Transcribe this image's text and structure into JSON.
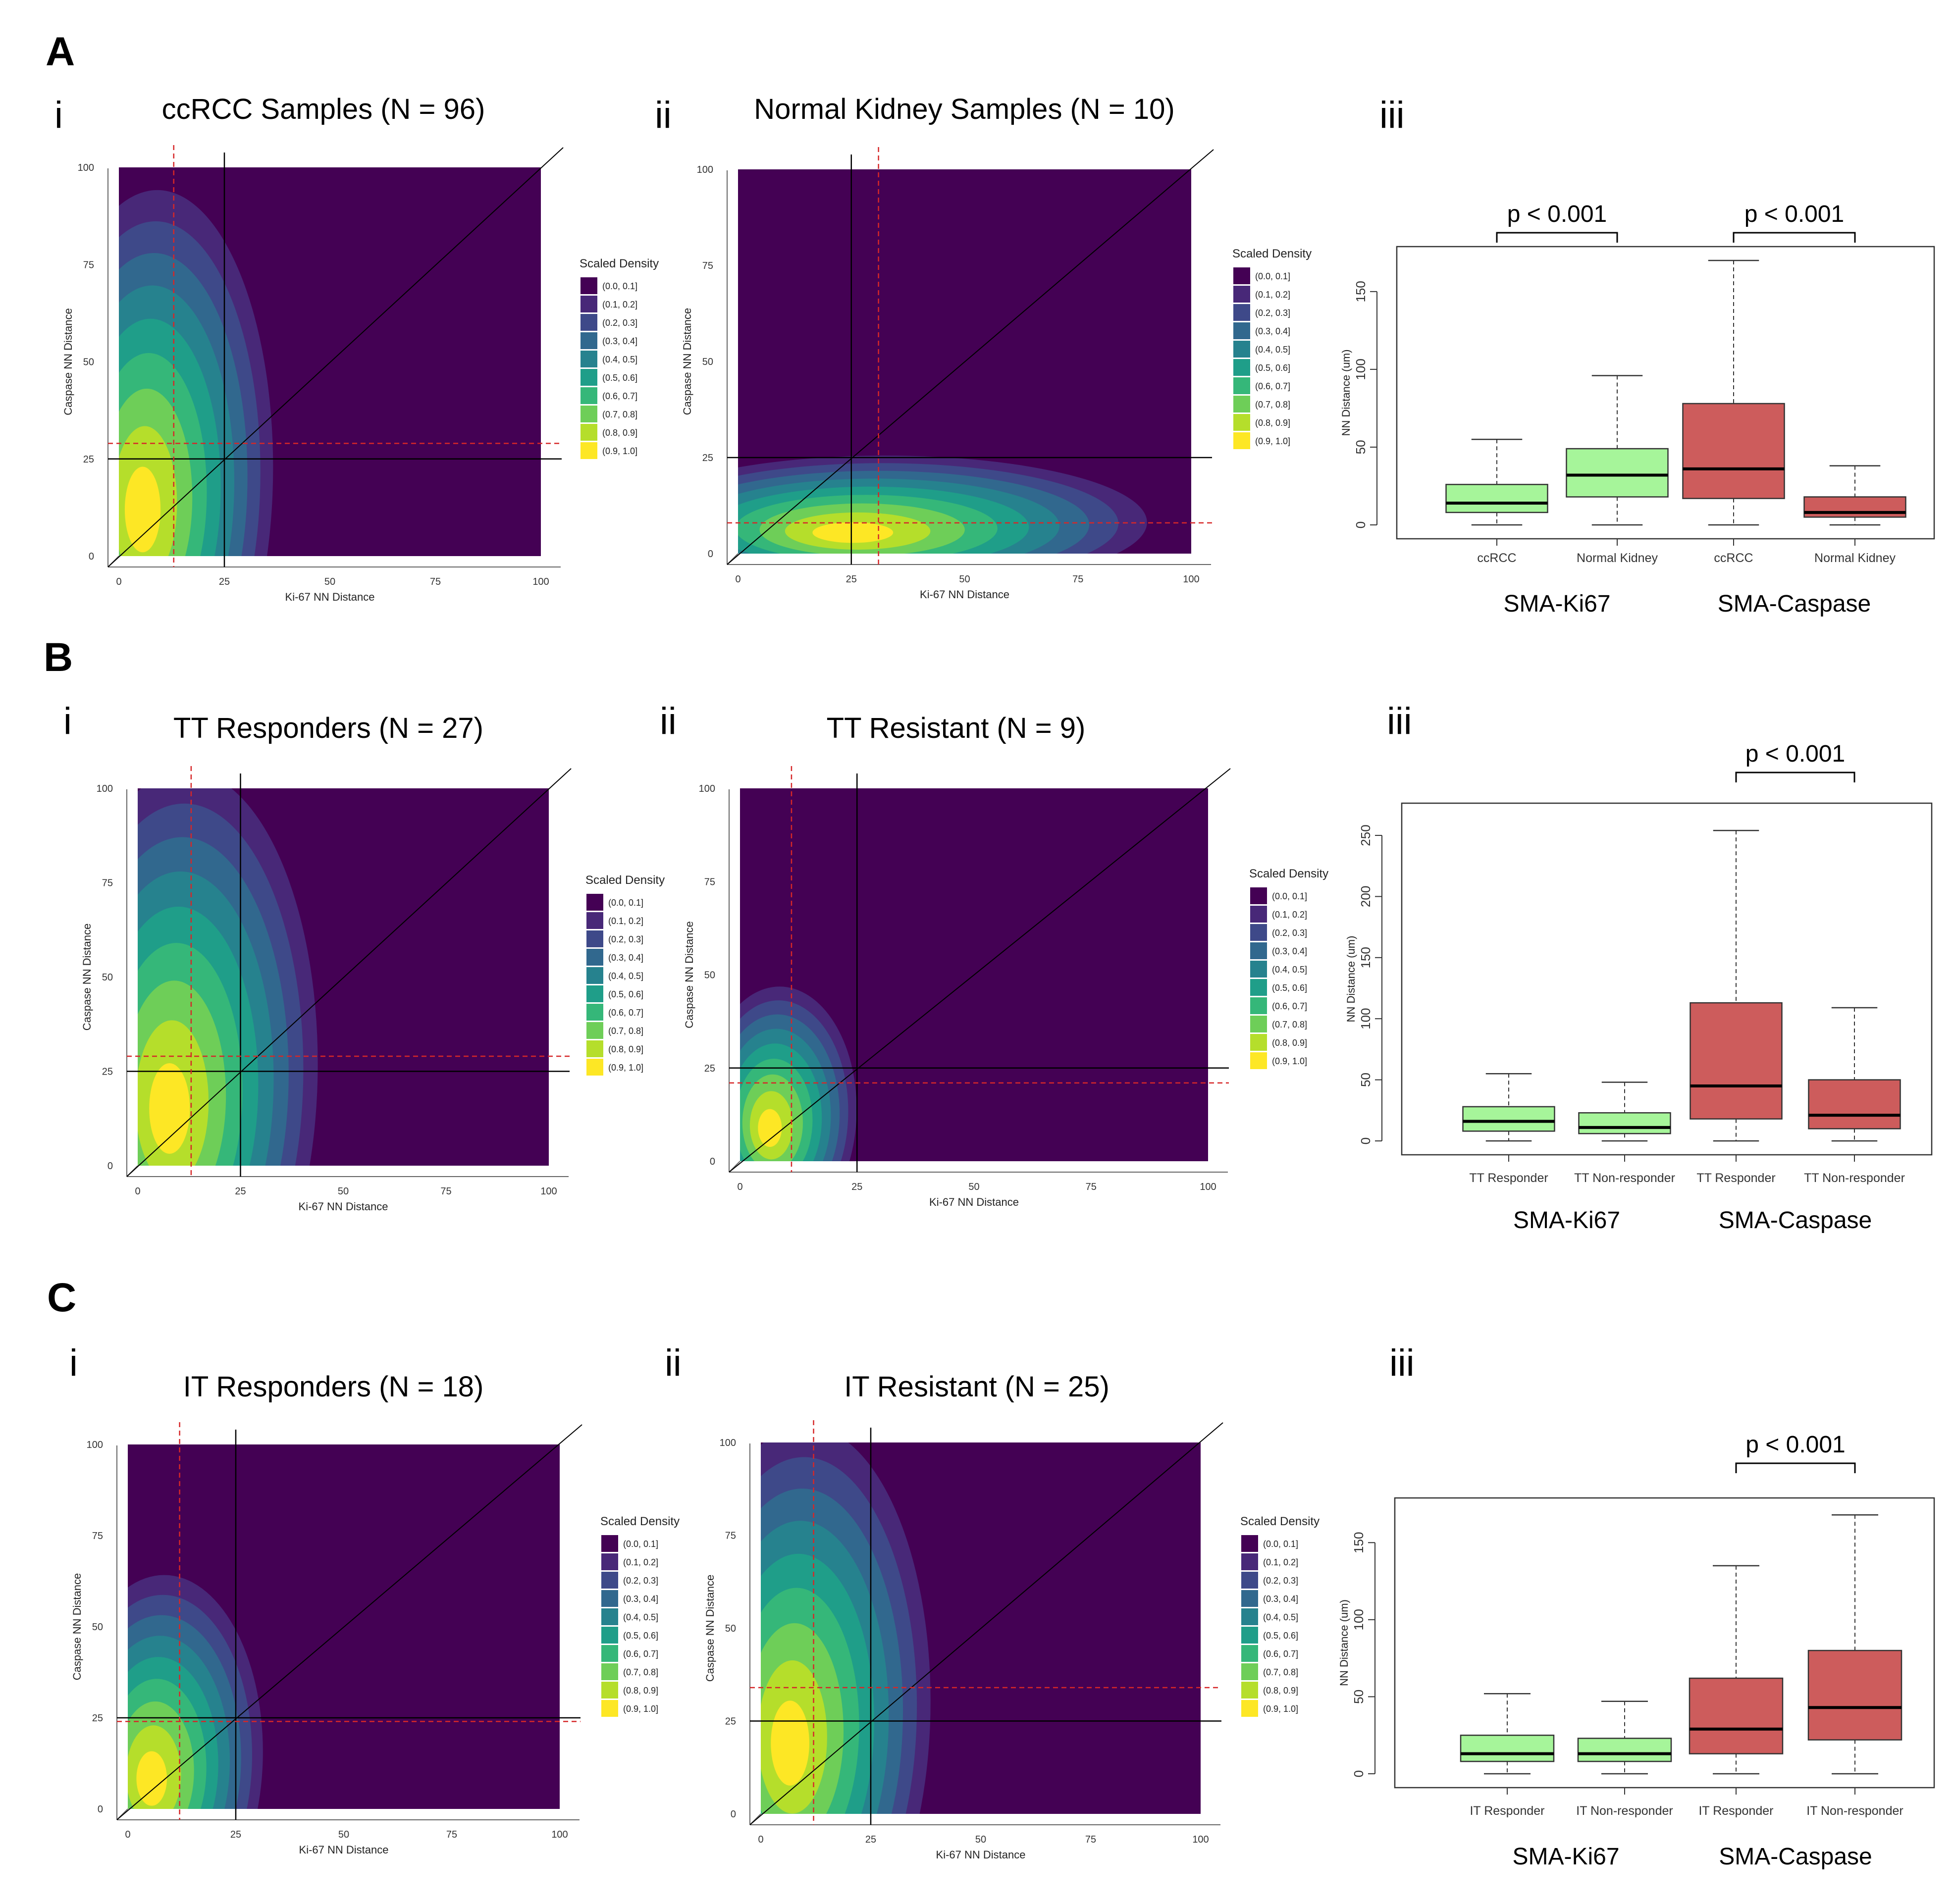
{
  "figure": {
    "panel_letters": [
      "A",
      "B",
      "C"
    ],
    "roman": [
      "i",
      "ii",
      "iii"
    ]
  },
  "colors": {
    "viridis": [
      "#440154",
      "#482878",
      "#3e4989",
      "#31688e",
      "#26828e",
      "#1f9e89",
      "#35b779",
      "#6ece58",
      "#b5de2b",
      "#fde725"
    ],
    "green_box": "#a6f59a",
    "red_box": "#cd5c5c",
    "ref_line": "#000000",
    "median_line": "#d62728"
  },
  "legend": {
    "title": "Scaled Density",
    "items": [
      "(0.0, 0.1]",
      "(0.1, 0.2]",
      "(0.2, 0.3]",
      "(0.3, 0.4]",
      "(0.4, 0.5]",
      "(0.5, 0.6]",
      "(0.6, 0.7]",
      "(0.7, 0.8]",
      "(0.8, 0.9]",
      "(0.9, 1.0]"
    ]
  },
  "chart_data": [
    {
      "id": "A-i",
      "type": "heatmap",
      "title": "ccRCC Samples (N = 96)",
      "xlabel": "Ki-67 NN Distance",
      "ylabel": "Caspase NN Distance",
      "xlim": [
        0,
        100
      ],
      "ylim": [
        0,
        100
      ],
      "xticks": [
        "0",
        "25",
        "50",
        "75",
        "100"
      ],
      "yticks": [
        "0",
        "25",
        "50",
        "75",
        "100"
      ],
      "reference_lines": {
        "x": 25,
        "y": 25,
        "diagonal": true
      },
      "median": {
        "x": 13,
        "y": 29
      },
      "density_peak": {
        "x": 5,
        "y": 10
      },
      "density_spread": {
        "x": 8,
        "y": 20
      },
      "extent": {
        "x": 35,
        "y": 88
      }
    },
    {
      "id": "A-ii",
      "type": "heatmap",
      "title": "Normal Kidney Samples (N = 10)",
      "xlabel": "Ki-67 NN Distance",
      "ylabel": "Caspase NN Distance",
      "xlim": [
        0,
        100
      ],
      "ylim": [
        0,
        100
      ],
      "xticks": [
        "0",
        "25",
        "50",
        "75",
        "100"
      ],
      "yticks": [
        "0",
        "25",
        "50",
        "75",
        "100"
      ],
      "reference_lines": {
        "x": 25,
        "y": 25,
        "diagonal": true
      },
      "median": {
        "x": 31,
        "y": 8
      },
      "density_peak": {
        "x": 24,
        "y": 5
      },
      "density_spread": {
        "x": 30,
        "y": 8
      },
      "extent": {
        "x": 87,
        "y": 24
      }
    },
    {
      "id": "A-iii",
      "type": "box",
      "title": "",
      "ylabel": "NN Distance (um)",
      "ylim": [
        0,
        170
      ],
      "yticks": [
        0,
        50,
        100,
        150
      ],
      "categories": [
        "ccRCC",
        "Normal Kidney",
        "ccRCC",
        "Normal Kidney"
      ],
      "groups": [
        "SMA-Ki67",
        "SMA-Caspase"
      ],
      "boxes": [
        {
          "min": 0,
          "q1": 8,
          "median": 14,
          "q3": 26,
          "max": 55,
          "color": "green"
        },
        {
          "min": 0,
          "q1": 18,
          "median": 32,
          "q3": 49,
          "max": 96,
          "color": "green"
        },
        {
          "min": 0,
          "q1": 17,
          "median": 36,
          "q3": 78,
          "max": 170,
          "color": "red"
        },
        {
          "min": 0,
          "q1": 5,
          "median": 8,
          "q3": 18,
          "max": 38,
          "color": "red"
        }
      ],
      "comparisons": [
        {
          "between": [
            0,
            1
          ],
          "label": "p < 0.001"
        },
        {
          "between": [
            2,
            3
          ],
          "label": "p < 0.001"
        }
      ]
    },
    {
      "id": "B-i",
      "type": "heatmap",
      "title": "TT Responders (N = 27)",
      "xlabel": "Ki-67 NN Distance",
      "ylabel": "Caspase NN Distance",
      "xlim": [
        0,
        100
      ],
      "ylim": [
        0,
        100
      ],
      "xticks": [
        "0",
        "25",
        "50",
        "75",
        "100"
      ],
      "yticks": [
        "0",
        "25",
        "50",
        "75",
        "100"
      ],
      "reference_lines": {
        "x": 25,
        "y": 25,
        "diagonal": true
      },
      "median": {
        "x": 13,
        "y": 29
      },
      "density_peak": {
        "x": 7,
        "y": 13
      },
      "density_spread": {
        "x": 10,
        "y": 25
      },
      "extent": {
        "x": 42,
        "y": 98
      }
    },
    {
      "id": "B-ii",
      "type": "heatmap",
      "title": "TT Resistant (N = 9)",
      "xlabel": "Ki-67 NN Distance",
      "ylabel": "Caspase NN Distance",
      "xlim": [
        0,
        100
      ],
      "ylim": [
        0,
        100
      ],
      "xticks": [
        "0",
        "25",
        "50",
        "75",
        "100"
      ],
      "yticks": [
        "0",
        "25",
        "50",
        "75",
        "100"
      ],
      "reference_lines": {
        "x": 25,
        "y": 25,
        "diagonal": true
      },
      "median": {
        "x": 11,
        "y": 21
      },
      "density_peak": {
        "x": 6,
        "y": 8
      },
      "density_spread": {
        "x": 7,
        "y": 13
      },
      "extent": {
        "x": 24,
        "y": 44
      }
    },
    {
      "id": "B-iii",
      "type": "box",
      "title": "",
      "ylabel": "NN Distance (um)",
      "ylim": [
        0,
        265
      ],
      "yticks": [
        0,
        50,
        100,
        150,
        200,
        250
      ],
      "categories": [
        "TT Responder",
        "TT Non-responder",
        "TT Responder",
        "TT Non-responder"
      ],
      "groups": [
        "SMA-Ki67",
        "SMA-Caspase"
      ],
      "boxes": [
        {
          "min": 0,
          "q1": 8,
          "median": 16,
          "q3": 28,
          "max": 55,
          "color": "green"
        },
        {
          "min": 0,
          "q1": 6,
          "median": 11,
          "q3": 23,
          "max": 48,
          "color": "green"
        },
        {
          "min": 0,
          "q1": 18,
          "median": 45,
          "q3": 113,
          "max": 254,
          "color": "red"
        },
        {
          "min": 0,
          "q1": 10,
          "median": 21,
          "q3": 50,
          "max": 109,
          "color": "red"
        }
      ],
      "comparisons": [
        {
          "between": [
            2,
            3
          ],
          "label": "p < 0.001"
        }
      ]
    },
    {
      "id": "C-i",
      "type": "heatmap",
      "title": "IT Responders (N = 18)",
      "xlabel": "Ki-67 NN Distance",
      "ylabel": "Caspase NN Distance",
      "xlim": [
        0,
        100
      ],
      "ylim": [
        0,
        100
      ],
      "xticks": [
        "0",
        "25",
        "50",
        "75",
        "100"
      ],
      "yticks": [
        "0",
        "25",
        "50",
        "75",
        "100"
      ],
      "reference_lines": {
        "x": 25,
        "y": 25,
        "diagonal": true
      },
      "median": {
        "x": 12,
        "y": 24
      },
      "density_peak": {
        "x": 5,
        "y": 7
      },
      "density_spread": {
        "x": 7,
        "y": 17
      },
      "extent": {
        "x": 30,
        "y": 60
      }
    },
    {
      "id": "C-ii",
      "type": "heatmap",
      "title": "IT Resistant (N = 25)",
      "xlabel": "Ki-67 NN Distance",
      "ylabel": "Caspase NN Distance",
      "xlim": [
        0,
        100
      ],
      "ylim": [
        0,
        100
      ],
      "xticks": [
        "0",
        "25",
        "50",
        "75",
        "100"
      ],
      "yticks": [
        "0",
        "25",
        "50",
        "75",
        "100"
      ],
      "reference_lines": {
        "x": 25,
        "y": 25,
        "diagonal": true
      },
      "median": {
        "x": 12,
        "y": 34
      },
      "density_peak": {
        "x": 6,
        "y": 17
      },
      "density_spread": {
        "x": 9,
        "y": 28
      },
      "extent": {
        "x": 37,
        "y": 98
      }
    },
    {
      "id": "C-iii",
      "type": "box",
      "title": "",
      "ylabel": "NN Distance (um)",
      "ylim": [
        0,
        170
      ],
      "yticks": [
        0,
        50,
        100,
        150
      ],
      "categories": [
        "IT Responder",
        "IT Non-responder",
        "IT Responder",
        "IT Non-responder"
      ],
      "groups": [
        "SMA-Ki67",
        "SMA-Caspase"
      ],
      "boxes": [
        {
          "min": 0,
          "q1": 8,
          "median": 13,
          "q3": 25,
          "max": 52,
          "color": "green"
        },
        {
          "min": 0,
          "q1": 8,
          "median": 13,
          "q3": 23,
          "max": 47,
          "color": "green"
        },
        {
          "min": 0,
          "q1": 13,
          "median": 29,
          "q3": 62,
          "max": 135,
          "color": "red"
        },
        {
          "min": 0,
          "q1": 22,
          "median": 43,
          "q3": 80,
          "max": 168,
          "color": "red"
        }
      ],
      "comparisons": [
        {
          "between": [
            2,
            3
          ],
          "label": "p < 0.001"
        }
      ]
    }
  ]
}
